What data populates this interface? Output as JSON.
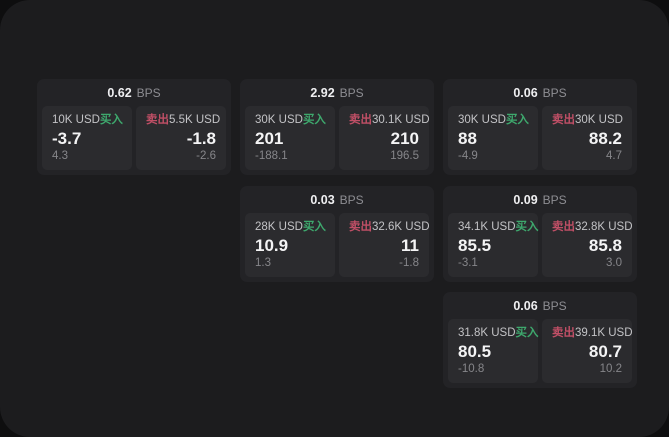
{
  "labels": {
    "bps_unit": "BPS",
    "buy": "买入",
    "sell": "卖出"
  },
  "colors": {
    "page_background": "#1c1c1e",
    "card_background": "#232326",
    "panel_background": "#2b2b2e",
    "buy_accent": "#3ea86d",
    "sell_accent": "#c04f66",
    "primary_text": "#f4f4f5",
    "muted_text": "#86868a"
  },
  "cards": [
    {
      "bps": "0.62",
      "buy": {
        "size": "10K USD",
        "value": "-3.7",
        "sub": "4.3"
      },
      "sell": {
        "size": "5.5K USD",
        "value": "-1.8",
        "sub": "-2.6"
      }
    },
    {
      "bps": "2.92",
      "buy": {
        "size": "30K USD",
        "value": "201",
        "sub": "-188.1"
      },
      "sell": {
        "size": "30.1K USD",
        "value": "210",
        "sub": "196.5"
      }
    },
    {
      "bps": "0.06",
      "buy": {
        "size": "30K USD",
        "value": "88",
        "sub": "-4.9"
      },
      "sell": {
        "size": "30K USD",
        "value": "88.2",
        "sub": "4.7"
      }
    },
    {
      "bps": "0.03",
      "buy": {
        "size": "28K USD",
        "value": "10.9",
        "sub": "1.3"
      },
      "sell": {
        "size": "32.6K USD",
        "value": "11",
        "sub": "-1.8"
      }
    },
    {
      "bps": "0.09",
      "buy": {
        "size": "34.1K USD",
        "value": "85.5",
        "sub": "-3.1"
      },
      "sell": {
        "size": "32.8K USD",
        "value": "85.8",
        "sub": "3.0"
      }
    },
    {
      "bps": "0.06",
      "buy": {
        "size": "31.8K USD",
        "value": "80.5",
        "sub": "-10.8"
      },
      "sell": {
        "size": "39.1K USD",
        "value": "80.7",
        "sub": "10.2"
      }
    }
  ]
}
